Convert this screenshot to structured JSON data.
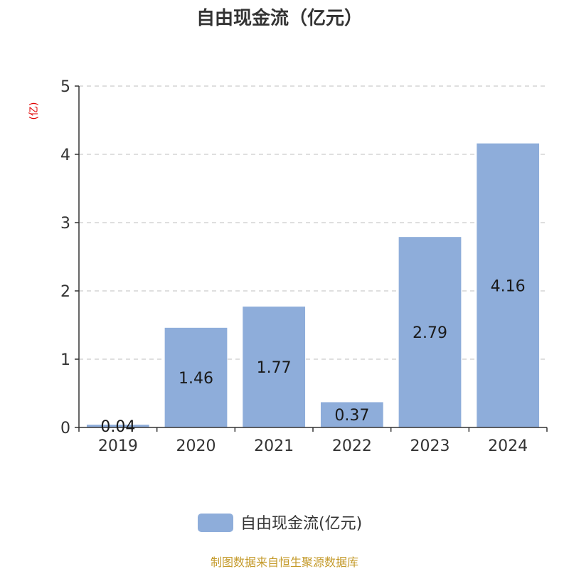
{
  "chart_data": {
    "type": "bar",
    "title": "自由现金流（亿元）",
    "ylabel": "(亿)",
    "categories": [
      "2019",
      "2020",
      "2021",
      "2022",
      "2023",
      "2024"
    ],
    "series": [
      {
        "name": "自由现金流(亿元)",
        "values": [
          0.04,
          1.46,
          1.77,
          0.37,
          2.79,
          4.16
        ],
        "labels": [
          "0.04",
          "1.46",
          "1.77",
          "0.37",
          "2.79",
          "4.16"
        ]
      }
    ],
    "ylim": [
      0,
      5
    ],
    "yticks": [
      "0",
      "1",
      "2",
      "3",
      "4",
      "5"
    ],
    "grid": true,
    "legend_position": "bottom-center"
  },
  "colors": {
    "bar": "#8eadda",
    "grid": "#cccccc",
    "axis": "#333333",
    "unit": "#e00000",
    "source": "#c49a2a"
  },
  "footer": {
    "source": "制图数据来自恒生聚源数据库"
  }
}
